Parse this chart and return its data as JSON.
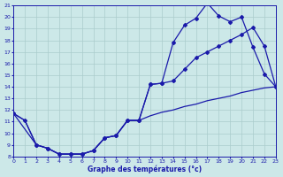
{
  "xlabel": "Graphe des températures (°c)",
  "bg_color": "#cce8e8",
  "grid_color": "#aacccc",
  "line_color": "#1a1aaa",
  "xlim": [
    0,
    23
  ],
  "ylim": [
    8,
    21
  ],
  "xticks": [
    0,
    1,
    2,
    3,
    4,
    5,
    6,
    7,
    8,
    9,
    10,
    11,
    12,
    13,
    14,
    15,
    16,
    17,
    18,
    19,
    20,
    21,
    22,
    23
  ],
  "yticks": [
    8,
    9,
    10,
    11,
    12,
    13,
    14,
    15,
    16,
    17,
    18,
    19,
    20,
    21
  ],
  "curve1_x": [
    0,
    1,
    2,
    3,
    4,
    5,
    6,
    7,
    8,
    9,
    10,
    11,
    12,
    13,
    14,
    15,
    16,
    17,
    18,
    19,
    20,
    21,
    22,
    23
  ],
  "curve1_y": [
    11.7,
    11.1,
    9.0,
    8.7,
    8.2,
    8.2,
    8.2,
    8.5,
    9.6,
    9.8,
    11.1,
    11.1,
    14.2,
    14.3,
    17.8,
    19.3,
    19.9,
    21.2,
    20.1,
    19.6,
    20.0,
    17.4,
    15.1,
    14.0
  ],
  "curve2_x": [
    0,
    2,
    3,
    4,
    5,
    6,
    7,
    8,
    9,
    10,
    11,
    12,
    13,
    14,
    15,
    16,
    17,
    18,
    19,
    20,
    21,
    22,
    23
  ],
  "curve2_y": [
    11.7,
    9.0,
    8.7,
    8.2,
    8.2,
    8.2,
    8.5,
    9.6,
    9.8,
    11.1,
    11.1,
    14.2,
    14.3,
    14.5,
    15.5,
    16.5,
    17.0,
    17.5,
    18.0,
    18.5,
    19.1,
    17.5,
    14.0
  ],
  "line3_x": [
    0,
    1,
    2,
    3,
    4,
    5,
    6,
    7,
    8,
    9,
    10,
    11,
    12,
    13,
    14,
    15,
    16,
    17,
    18,
    19,
    20,
    21,
    22,
    23
  ],
  "line3_y": [
    11.7,
    11.1,
    9.0,
    8.7,
    8.2,
    8.2,
    8.2,
    8.5,
    9.6,
    9.8,
    11.1,
    11.1,
    11.5,
    11.8,
    12.0,
    12.3,
    12.5,
    12.8,
    13.0,
    13.2,
    13.5,
    13.7,
    13.9,
    14.0
  ]
}
